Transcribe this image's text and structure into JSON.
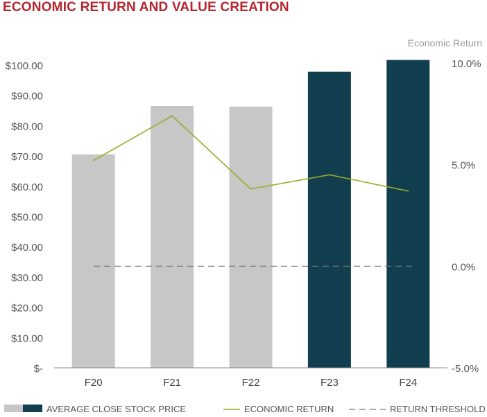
{
  "title": "ECONOMIC RETURN AND VALUE CREATION",
  "colors": {
    "title": "#b3262e",
    "bar_history": "#c8c7c7",
    "bar_recent": "#123f4f",
    "line": "#9aab2a",
    "threshold": "#777777",
    "axis": "#888888"
  },
  "chart_data": {
    "type": "bar",
    "categories": [
      "F20",
      "F21",
      "F22",
      "F23",
      "F24"
    ],
    "series": [
      {
        "name": "AVERAGE CLOSE STOCK PRICE",
        "type": "bar",
        "axis": "left",
        "values": [
          70.5,
          86.5,
          86.3,
          97.8,
          101.7
        ],
        "colors": [
          "#c8c7c7",
          "#c8c7c7",
          "#c8c7c7",
          "#123f4f",
          "#123f4f"
        ]
      },
      {
        "name": "ECONOMIC RETURN",
        "type": "line",
        "axis": "right",
        "values": [
          5.2,
          7.4,
          3.8,
          4.5,
          3.7
        ]
      },
      {
        "name": "RETURN THRESHOLD",
        "type": "dashed-line",
        "axis": "right",
        "values": [
          0.0,
          0.0,
          0.0,
          0.0,
          0.0
        ]
      }
    ],
    "left_axis": {
      "ylim": [
        0,
        100
      ],
      "ticks": [
        0,
        10,
        20,
        30,
        40,
        50,
        60,
        70,
        80,
        90,
        100
      ],
      "tick_labels": [
        "$-",
        "$10.00",
        "$20.00",
        "$30.00",
        "$40.00",
        "$50.00",
        "$60.00",
        "$70.00",
        "$80.00",
        "$90.00",
        "$100.00"
      ]
    },
    "right_axis": {
      "label": "Economic Return",
      "ylim": [
        -5,
        10
      ],
      "ticks": [
        -5,
        0,
        5,
        10
      ],
      "tick_labels": [
        "-5.0%",
        "0.0%",
        "5.0%",
        "10.0%"
      ]
    },
    "grid": false,
    "legend": {
      "position": "bottom",
      "items": [
        {
          "label": "AVERAGE CLOSE STOCK PRICE",
          "swatch": "bar"
        },
        {
          "label": "ECONOMIC RETURN",
          "swatch": "line"
        },
        {
          "label": "RETURN THRESHOLD",
          "swatch": "dashed"
        }
      ]
    }
  }
}
